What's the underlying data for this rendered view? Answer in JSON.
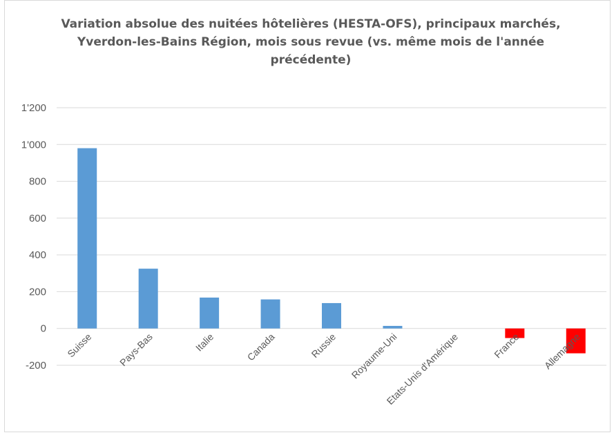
{
  "chart_data": {
    "type": "bar",
    "title": "Variation absolue des nuitées hôtelières (HESTA-OFS), principaux marchés, Yverdon-les-Bains Région, mois sous revue (vs. même mois de l'année précédente)",
    "categories": [
      "Suisse",
      "Pays-Bas",
      "Italie",
      "Canada",
      "Russie",
      "Royaume-Uni",
      "Etats-Unis d'Amérique",
      "France",
      "Allemagne"
    ],
    "values": [
      980,
      325,
      168,
      158,
      138,
      14,
      0,
      -52,
      -135
    ],
    "ylim": [
      -200,
      1200
    ],
    "yticks": [
      -200,
      0,
      200,
      400,
      600,
      800,
      1000,
      1200
    ],
    "ytick_labels": [
      "-200",
      "0",
      "200",
      "400",
      "600",
      "800",
      "1'000",
      "1'200"
    ],
    "grid": true,
    "colors": {
      "positive": "#5b9bd5",
      "negative": "#ff0000",
      "grid": "#d9d9d9",
      "text": "#595959"
    }
  }
}
